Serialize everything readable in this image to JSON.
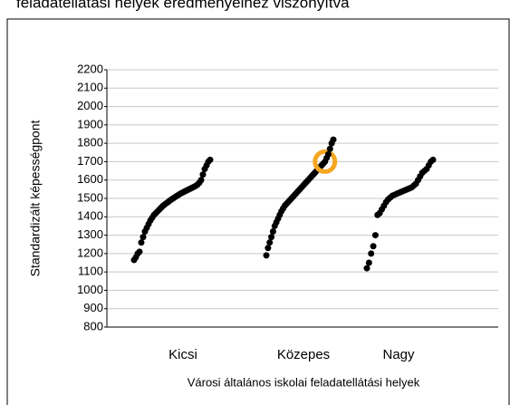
{
  "chart_data": {
    "type": "strip",
    "title": "feladatellátási helyek eredményeihez viszonyítva",
    "y_label": "Standardizált képességpont",
    "x_label": "Városi általános iskolai feladatellátási helyek",
    "categories": [
      "Kicsi",
      "Közepes",
      "Nagy"
    ],
    "color": "#000000",
    "highlight_color": "#f5a623",
    "highlight_value": 1700,
    "series": [
      {
        "values": [
          1165,
          1180,
          1200,
          1210,
          1260,
          1290,
          1320,
          1340,
          1360,
          1380,
          1395,
          1410,
          1420,
          1430,
          1440,
          1450,
          1460,
          1468,
          1475,
          1482,
          1490,
          1497,
          1503,
          1510,
          1516,
          1522,
          1528,
          1533,
          1538,
          1543,
          1548,
          1553,
          1558,
          1563,
          1568,
          1575,
          1585,
          1600,
          1630,
          1660,
          1680,
          1700,
          1710
        ]
      },
      {
        "values": [
          1190,
          1230,
          1260,
          1290,
          1320,
          1350,
          1370,
          1390,
          1410,
          1430,
          1445,
          1460,
          1470,
          1480,
          1490,
          1500,
          1510,
          1520,
          1530,
          1540,
          1550,
          1560,
          1570,
          1580,
          1590,
          1600,
          1610,
          1620,
          1630,
          1640,
          1650,
          1660,
          1670,
          1680,
          1690,
          1700,
          1720,
          1740,
          1770,
          1800,
          1820
        ]
      },
      {
        "values": [
          1120,
          1150,
          1200,
          1240,
          1300,
          1410,
          1420,
          1440,
          1460,
          1480,
          1495,
          1505,
          1515,
          1520,
          1525,
          1530,
          1535,
          1540,
          1545,
          1550,
          1555,
          1560,
          1570,
          1580,
          1600,
          1620,
          1640,
          1650,
          1660,
          1680,
          1700,
          1710
        ]
      }
    ],
    "ylim": [
      800,
      2200
    ],
    "yticks": [
      800,
      900,
      1000,
      1100,
      1200,
      1300,
      1400,
      1500,
      1600,
      1700,
      1800,
      1900,
      2000,
      2100,
      2200
    ],
    "grid": true
  }
}
